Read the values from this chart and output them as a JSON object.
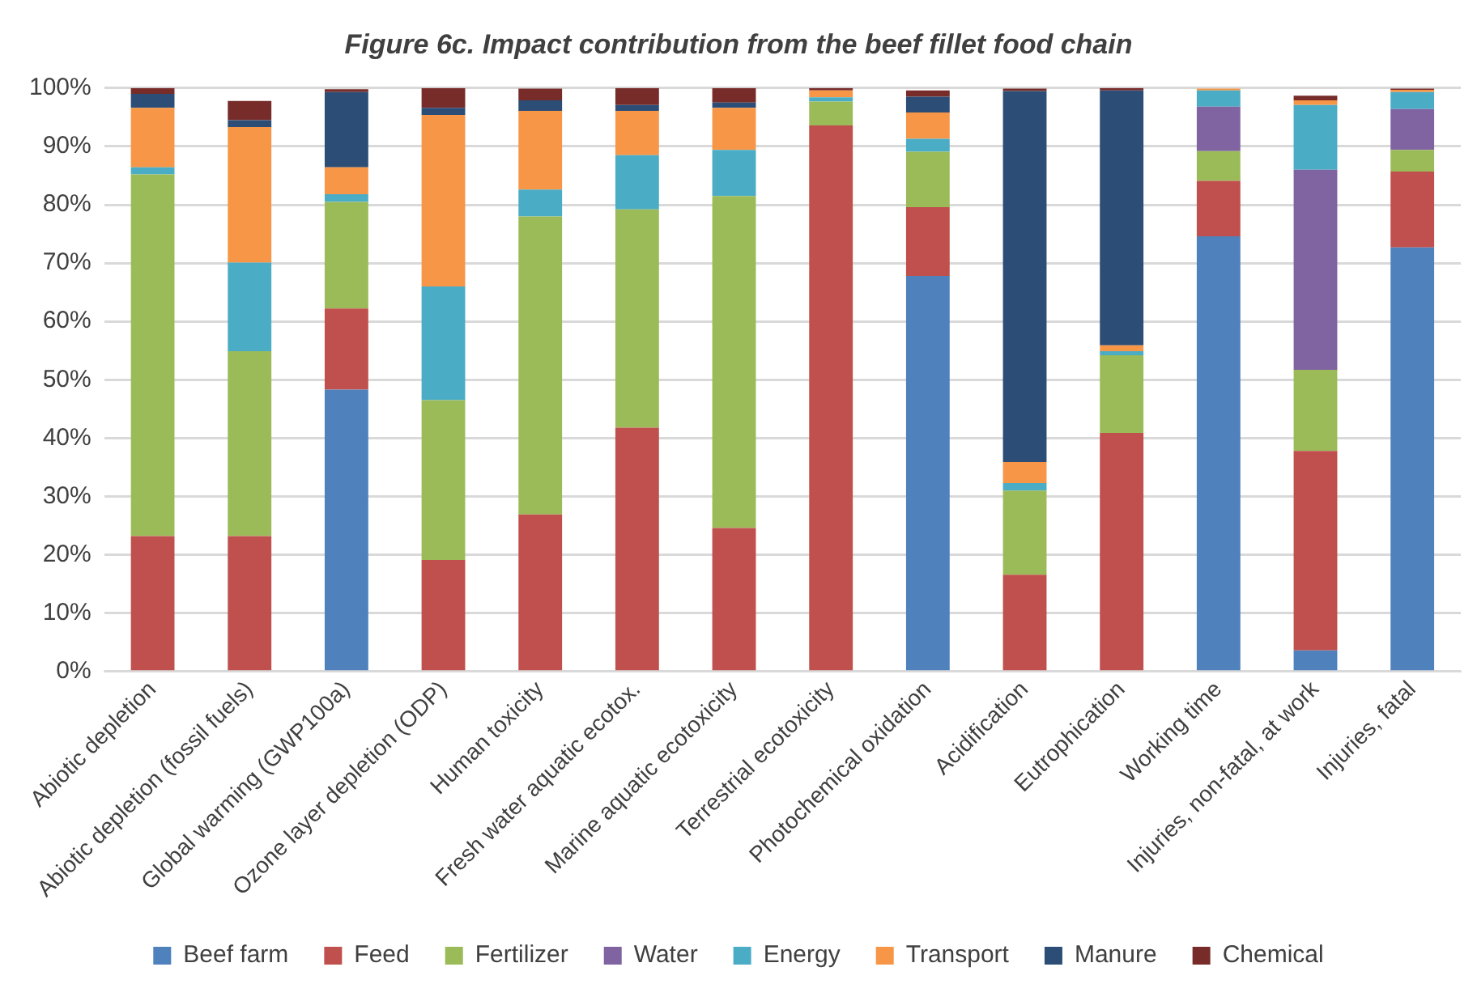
{
  "chart_data": {
    "type": "bar",
    "stacked": true,
    "title": "Figure 6c. Impact contribution from the beef fillet food chain",
    "categories": [
      "Abiotic depletion",
      "Abiotic depletion (fossil fuels)",
      "Global warming (GWP100a)",
      "Ozone layer depletion (ODP)",
      "Human toxicity",
      "Fresh water aquatic ecotox.",
      "Marine aquatic ecotoxicity",
      "Terrestrial ecotoxicity",
      "Photochemical oxidation",
      "Acidification",
      "Eutrophication",
      "Working time",
      "Injuries, non-fatal, at work",
      "Injuries, fatal"
    ],
    "series": [
      {
        "name": "Beef farm",
        "color": "#4f81bd",
        "values": [
          0,
          0,
          48.3,
          0,
          0,
          0,
          0,
          0,
          67.8,
          0,
          0,
          74.6,
          3.6,
          72.7
        ]
      },
      {
        "name": "Feed",
        "color": "#c0504d",
        "values": [
          23.2,
          23.2,
          13.9,
          19.1,
          26.9,
          41.8,
          24.6,
          93.6,
          11.8,
          16.6,
          40.9,
          9.5,
          34.2,
          13.0
        ]
      },
      {
        "name": "Fertilizer",
        "color": "#9bbb59",
        "values": [
          62,
          31.7,
          18.3,
          27.4,
          51.1,
          37.4,
          56.9,
          4.1,
          9.5,
          14.4,
          13.3,
          5.1,
          13.9,
          3.7
        ]
      },
      {
        "name": "Water",
        "color": "#8064a2",
        "values": [
          0,
          0,
          0,
          0,
          0,
          0,
          0,
          0,
          0,
          0,
          0,
          7.6,
          34.3,
          7.0
        ]
      },
      {
        "name": "Energy",
        "color": "#4bacc6",
        "values": [
          1.2,
          15.2,
          1.3,
          19.5,
          4.6,
          9.3,
          7.9,
          0.7,
          2.2,
          1.3,
          0.7,
          2.8,
          11.1,
          2.9
        ]
      },
      {
        "name": "Transport",
        "color": "#f79646",
        "values": [
          10.2,
          23.2,
          4.6,
          29.4,
          13.5,
          7.6,
          7.2,
          1.2,
          4.5,
          3.6,
          1.0,
          0.3,
          0.8,
          0.4
        ]
      },
      {
        "name": "Manure",
        "color": "#2c4d75",
        "values": [
          2.4,
          1.2,
          12.9,
          1.2,
          1.8,
          1.0,
          0.9,
          0,
          2.7,
          63.6,
          43.7,
          0,
          0,
          0
        ]
      },
      {
        "name": "Chemical",
        "color": "#772c2a",
        "values": [
          1.0,
          3.3,
          0.5,
          3.4,
          2.0,
          2.9,
          2.5,
          0.4,
          1.1,
          0.4,
          0.4,
          0,
          0.8,
          0.2
        ]
      }
    ],
    "ylim": [
      0,
      100
    ],
    "yticks": [
      {
        "value": 0,
        "label": "0%"
      },
      {
        "value": 10,
        "label": "10%"
      },
      {
        "value": 20,
        "label": "20%"
      },
      {
        "value": 30,
        "label": "30%"
      },
      {
        "value": 40,
        "label": "40%"
      },
      {
        "value": 50,
        "label": "50%"
      },
      {
        "value": 60,
        "label": "60%"
      },
      {
        "value": 70,
        "label": "70%"
      },
      {
        "value": 80,
        "label": "80%"
      },
      {
        "value": 90,
        "label": "90%"
      },
      {
        "value": 100,
        "label": "100%"
      }
    ],
    "grid": "y",
    "legend": "bottom"
  }
}
